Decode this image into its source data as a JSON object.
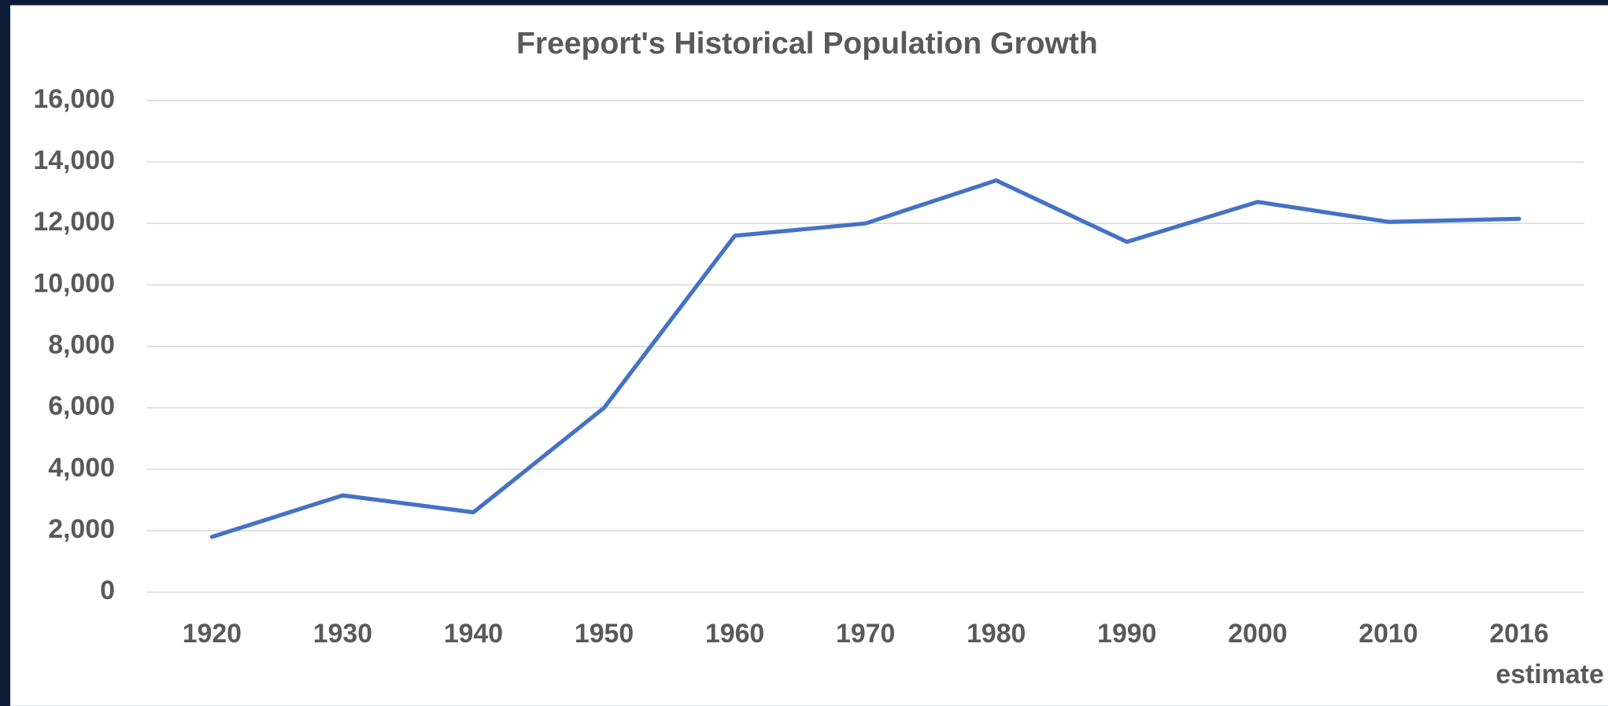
{
  "chart_data": {
    "type": "line",
    "title": "Freeport's Historical Population Growth",
    "categories": [
      "1920",
      "1930",
      "1940",
      "1950",
      "1960",
      "1970",
      "1980",
      "1990",
      "2000",
      "2010",
      "2016 estimate"
    ],
    "series": [
      {
        "name": "Population",
        "color": "#4472c4",
        "values": [
          1800,
          3150,
          2600,
          6000,
          11600,
          12000,
          13400,
          11400,
          12700,
          12050,
          12150
        ]
      }
    ],
    "ylim": [
      0,
      16000
    ],
    "yticks": [
      0,
      {
        "value": 2000,
        "label": "2,000"
      },
      {
        "value": 4000,
        "label": "4,000"
      },
      {
        "value": 6000,
        "label": "6,000"
      },
      {
        "value": 8000,
        "label": "8,000"
      },
      {
        "value": 10000,
        "label": "10,000"
      },
      {
        "value": 12000,
        "label": "12,000"
      },
      {
        "value": 14000,
        "label": "14,000"
      },
      {
        "value": 16000,
        "label": "16,000"
      }
    ],
    "grid": true,
    "legend": false
  }
}
